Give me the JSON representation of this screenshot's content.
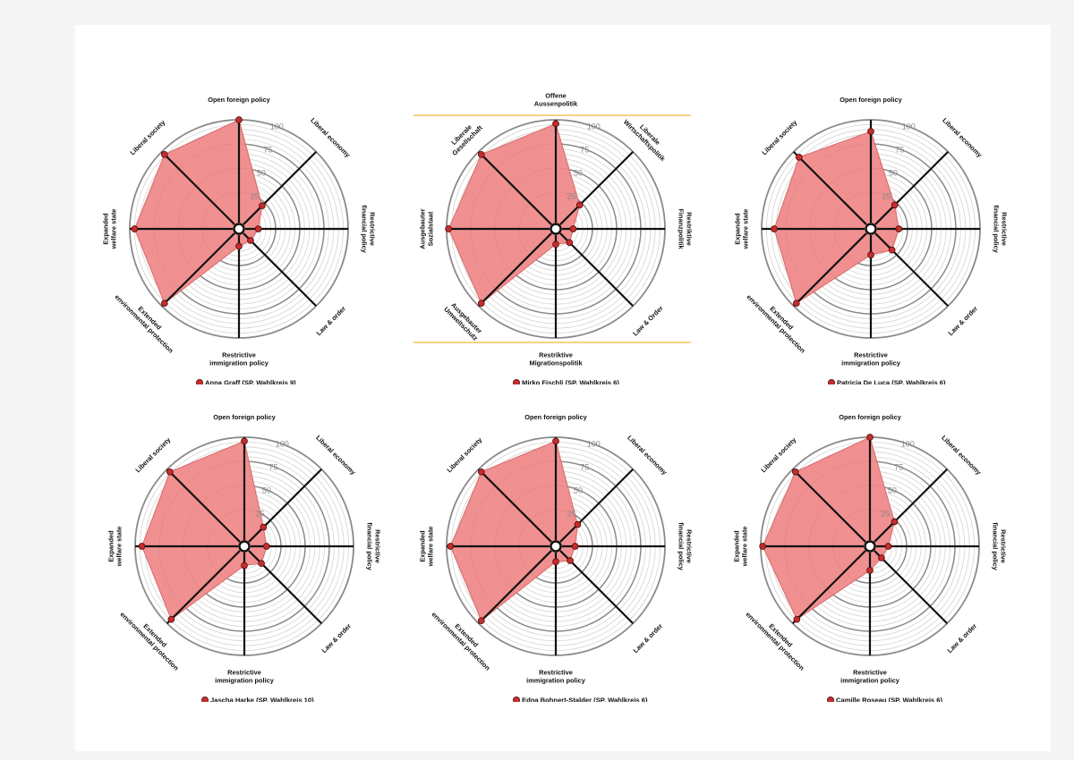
{
  "colors": {
    "fill": "#ef8a8a",
    "point": "#c62d2d",
    "spoke": "#111111",
    "guide": "#f2b93b"
  },
  "chart_data": [
    {
      "type": "radar",
      "title": "Anna Graff (SP, Wahlkreis 9)",
      "legend": "Anna Graff (SP, Wahlkreis 9)",
      "axes": [
        "Open foreign policy",
        "Liberal economy",
        "Restrictive financial policy",
        "Law & order",
        "Restrictive immigration policy",
        "Extended environmental protection",
        "Expanded welfare state",
        "Liberal society"
      ],
      "ticks": [
        25,
        50,
        75,
        100
      ],
      "rmax": 100,
      "values": [
        100,
        21,
        7,
        4,
        5,
        96,
        95,
        96
      ]
    },
    {
      "type": "radar",
      "title": "Mirko Fischli (SP, Wahlkreis 6)",
      "legend": "Mirko Fischli (SP, Wahlkreis 6)",
      "axes": [
        "Offene Aussenpolitik",
        "Liberale Wirtschaftspolitik",
        "Restriktive Finanzpolitik",
        "Law & Order",
        "Restriktive Migrationspolitik",
        "Ausgebauter Umweltschutz",
        "Ausgebauter Sozialstaat",
        "Liberale Gesellschaft"
      ],
      "ticks": [
        25,
        50,
        75,
        100
      ],
      "rmax": 100,
      "values": [
        96,
        22,
        5,
        7,
        3,
        96,
        98,
        96
      ]
    },
    {
      "type": "radar",
      "title": "Patricia De Luca (SP, Wahlkreis 6)",
      "legend": "Patricia De Luca (SP, Wahlkreis 6)",
      "axes": [
        "Open foreign policy",
        "Liberal economy",
        "Restrictive financial policy",
        "Law & order",
        "Restrictive immigration policy",
        "Extended environmental protection",
        "Expanded welfare state",
        "Liberal society"
      ],
      "ticks": [
        25,
        50,
        75,
        100
      ],
      "rmax": 100,
      "values": [
        88,
        22,
        16,
        18,
        14,
        96,
        87,
        92
      ]
    },
    {
      "type": "radar",
      "title": "Jascha Harke (SP, Wahlkreis 10)",
      "legend": "Jascha Harke (SP, Wahlkreis 10)",
      "axes": [
        "Open foreign policy",
        "Liberal economy",
        "Restrictive financial policy",
        "Law & order",
        "Restrictive immigration policy",
        "Extended environmental protection",
        "Expanded welfare state",
        "Liberal society"
      ],
      "ticks": [
        25,
        50,
        75,
        100
      ],
      "rmax": 100,
      "values": [
        96,
        15,
        10,
        12,
        7,
        94,
        93,
        96
      ]
    },
    {
      "type": "radar",
      "title": "Edna Bohnert-Stalder (SP, Wahlkreis 6)",
      "legend": "Edna Bohnert-Stalder (SP, Wahlkreis 6)",
      "axes": [
        "Open foreign policy",
        "Liberal economy",
        "Restrictive financial policy",
        "Law & order",
        "Restrictive immigration policy",
        "Extended environmental protection",
        "Expanded welfare state",
        "Liberal society"
      ],
      "ticks": [
        25,
        50,
        75,
        100
      ],
      "rmax": 100,
      "values": [
        96,
        19,
        7,
        8,
        3,
        96,
        96,
        96
      ]
    },
    {
      "type": "radar",
      "title": "Camille Roseau (SP, Wahlkreis 6)",
      "legend": "Camille Roseau (SP, Wahlkreis 6)",
      "axes": [
        "Open foreign policy",
        "Liberal economy",
        "Restrictive financial policy",
        "Law & order",
        "Restrictive immigration policy",
        "Extended environmental protection",
        "Expanded welfare state",
        "Liberal society"
      ],
      "ticks": [
        25,
        50,
        75,
        100
      ],
      "rmax": 100,
      "values": [
        100,
        23,
        6,
        4,
        12,
        94,
        98,
        96
      ]
    }
  ]
}
